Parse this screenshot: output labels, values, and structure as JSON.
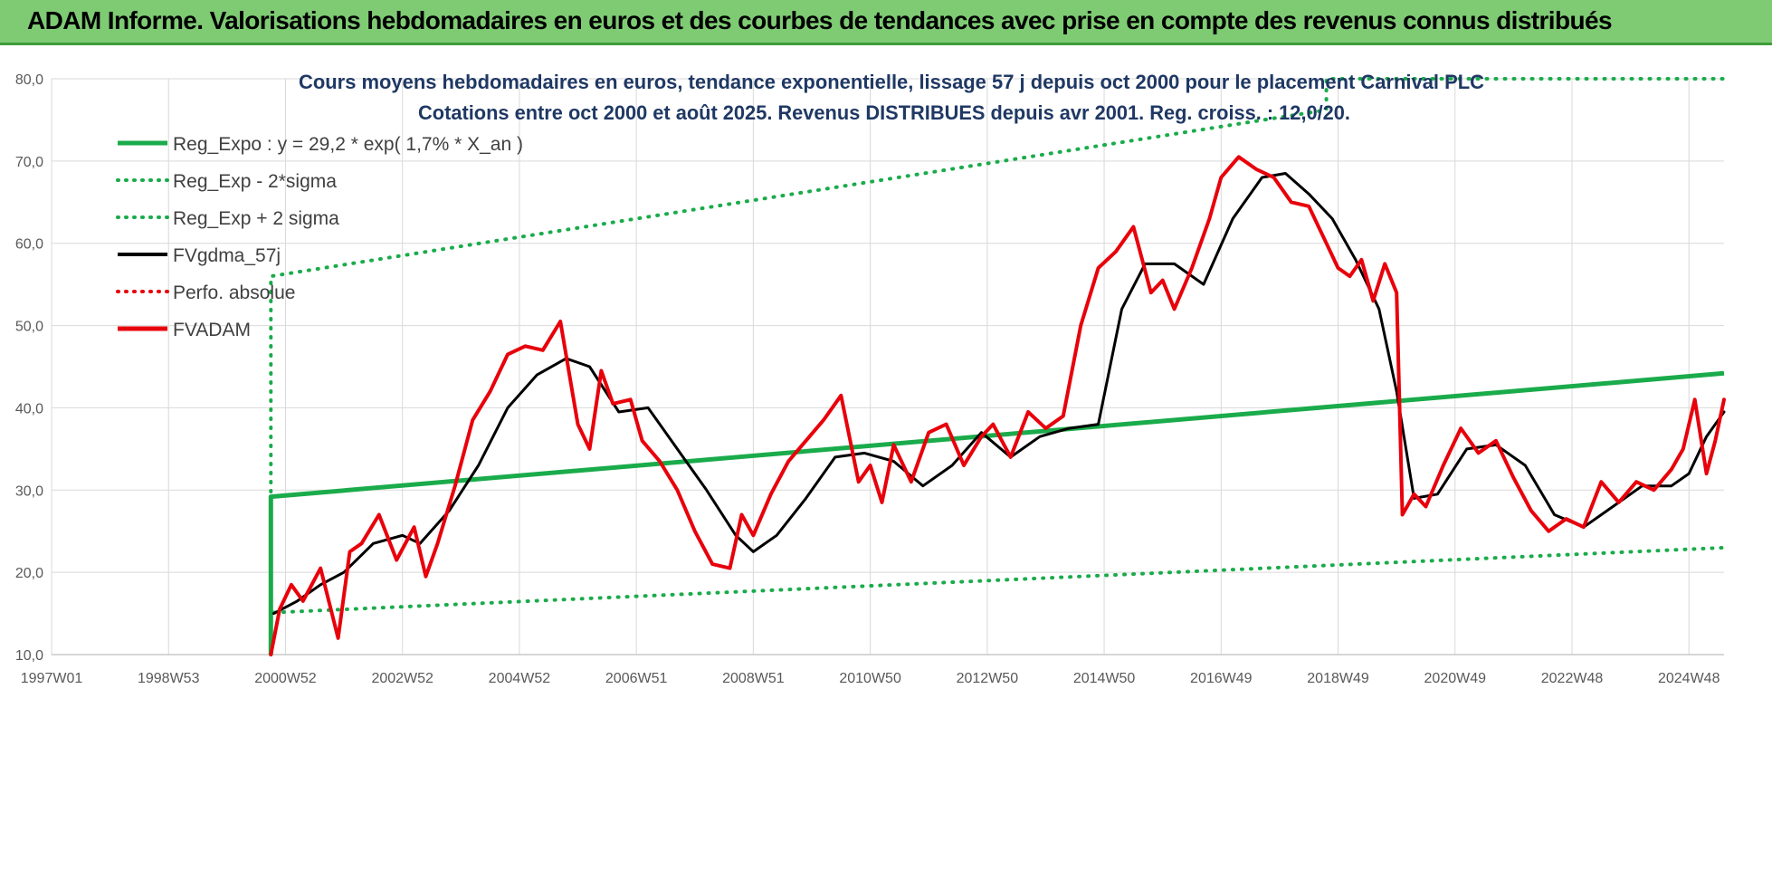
{
  "banner": {
    "title": "ADAM Informe. Valorisations hebdomadaires en euros et des courbes de tendances avec prise en compte des revenus connus distribués"
  },
  "colors": {
    "banner_bg": "#7ecb73",
    "reg_expo": "#1aab4b",
    "fvgdma": "#000000",
    "fvadam": "#e8000b",
    "title_text": "#1f3864"
  },
  "chart_data": {
    "type": "line",
    "title_line1": "Cours moyens hebdomadaires en euros, tendance exponentielle, lissage 57 j depuis oct 2000 pour le placement Carnival PLC",
    "title_line2": "Cotations entre oct 2000 et août 2025.  Revenus DISTRIBUES depuis avr 2001. Reg. croiss. : 12,0/20.",
    "xlabel": "",
    "ylabel": "",
    "ylim": [
      10,
      80
    ],
    "xlim": [
      1997.0,
      2025.6
    ],
    "y_ticks": [
      "10,0",
      "20,0",
      "30,0",
      "40,0",
      "50,0",
      "60,0",
      "70,0",
      "80,0"
    ],
    "y_tick_values": [
      10,
      20,
      30,
      40,
      50,
      60,
      70,
      80
    ],
    "x_ticks": [
      "1997W01",
      "1998W53",
      "2000W52",
      "2002W52",
      "2004W52",
      "2006W51",
      "2008W51",
      "2010W50",
      "2012W50",
      "2014W50",
      "2016W49",
      "2018W49",
      "2020W49",
      "2022W48",
      "2024W48"
    ],
    "x_tick_values": [
      1997.0,
      1999.0,
      2001.0,
      2003.0,
      2005.0,
      2007.0,
      2009.0,
      2011.0,
      2013.0,
      2015.0,
      2017.0,
      2019.0,
      2021.0,
      2023.0,
      2025.0
    ],
    "grid": true,
    "legend_position": "top-left",
    "legend": [
      {
        "label": "Reg_Expo : y = 29,2 * exp( 1,7% *  X_an )",
        "style": "solid-thick",
        "color": "#1aab4b"
      },
      {
        "label": "Reg_Exp - 2*sigma",
        "style": "dotted",
        "color": "#1aab4b"
      },
      {
        "label": "Reg_Exp + 2 sigma",
        "style": "dotted",
        "color": "#1aab4b"
      },
      {
        "label": "FVgdma_57j",
        "style": "solid",
        "color": "#000000"
      },
      {
        "label": "Perfo. absolue",
        "style": "dotted",
        "color": "#e8000b"
      },
      {
        "label": "FVADAM",
        "style": "solid-thick",
        "color": "#e8000b"
      }
    ],
    "series": [
      {
        "name": "Reg_Expo : y = 29,2 * exp( 1,7% *  X_an )",
        "x": [
          2000.75,
          2000.75,
          2025.6
        ],
        "y": [
          10.0,
          29.2,
          44.2
        ]
      },
      {
        "name": "Reg_Exp - 2*sigma",
        "x": [
          2000.75,
          2000.75,
          2025.6
        ],
        "y": [
          10.0,
          15.1,
          23.0
        ]
      },
      {
        "name": "Reg_Exp + 2 sigma",
        "x": [
          2000.75,
          2000.75,
          2018.8,
          2018.8,
          2025.6
        ],
        "y": [
          10.0,
          56.0,
          76.2,
          80.0,
          80.0
        ]
      },
      {
        "name": "FVgdma_57j",
        "x": [
          2000.8,
          2001.2,
          2001.6,
          2002.0,
          2002.5,
          2003.0,
          2003.3,
          2003.8,
          2004.3,
          2004.8,
          2005.3,
          2005.8,
          2006.2,
          2006.7,
          2007.2,
          2007.7,
          2008.2,
          2008.7,
          2009.0,
          2009.4,
          2009.9,
          2010.4,
          2010.9,
          2011.4,
          2011.9,
          2012.4,
          2012.9,
          2013.4,
          2013.9,
          2014.4,
          2014.9,
          2015.3,
          2015.7,
          2016.2,
          2016.7,
          2017.2,
          2017.7,
          2018.1,
          2018.5,
          2018.9,
          2019.3,
          2019.7,
          2020.0,
          2020.3,
          2020.7,
          2021.2,
          2021.7,
          2022.2,
          2022.7,
          2023.2,
          2023.7,
          2024.2,
          2024.7,
          2025.0,
          2025.3,
          2025.6
        ],
        "y": [
          15.0,
          16.5,
          18.5,
          20.0,
          23.5,
          24.5,
          23.5,
          27.5,
          33.0,
          40.0,
          44.0,
          46.0,
          45.0,
          39.5,
          40.0,
          35.0,
          30.0,
          24.5,
          22.5,
          24.5,
          29.0,
          34.0,
          34.5,
          33.5,
          30.5,
          33.0,
          37.0,
          34.0,
          36.5,
          37.5,
          38.0,
          52.0,
          57.5,
          57.5,
          55.0,
          63.0,
          68.0,
          68.5,
          66.0,
          63.0,
          58.0,
          52.0,
          42.0,
          29.0,
          29.5,
          35.0,
          35.5,
          33.0,
          27.0,
          25.5,
          28.0,
          30.5,
          30.5,
          32.0,
          36.5,
          39.5
        ]
      },
      {
        "name": "FVADAM",
        "x": [
          2000.75,
          2000.9,
          2001.1,
          2001.3,
          2001.6,
          2001.9,
          2002.1,
          2002.3,
          2002.6,
          2002.9,
          2003.2,
          2003.4,
          2003.6,
          2003.9,
          2004.2,
          2004.5,
          2004.8,
          2005.1,
          2005.4,
          2005.7,
          2006.0,
          2006.2,
          2006.4,
          2006.6,
          2006.9,
          2007.1,
          2007.4,
          2007.7,
          2008.0,
          2008.3,
          2008.6,
          2008.8,
          2009.0,
          2009.3,
          2009.6,
          2009.9,
          2010.2,
          2010.5,
          2010.8,
          2011.0,
          2011.2,
          2011.4,
          2011.7,
          2012.0,
          2012.3,
          2012.6,
          2012.9,
          2013.1,
          2013.4,
          2013.7,
          2014.0,
          2014.3,
          2014.6,
          2014.9,
          2015.2,
          2015.5,
          2015.8,
          2016.0,
          2016.2,
          2016.5,
          2016.8,
          2017.0,
          2017.3,
          2017.6,
          2017.9,
          2018.2,
          2018.5,
          2018.8,
          2019.0,
          2019.2,
          2019.4,
          2019.6,
          2019.8,
          2020.0,
          2020.1,
          2020.3,
          2020.5,
          2020.8,
          2021.1,
          2021.4,
          2021.7,
          2022.0,
          2022.3,
          2022.6,
          2022.9,
          2023.2,
          2023.5,
          2023.8,
          2024.1,
          2024.4,
          2024.7,
          2024.9,
          2025.1,
          2025.3,
          2025.45,
          2025.6
        ],
        "y": [
          10.0,
          15.5,
          18.5,
          16.5,
          20.5,
          12.0,
          22.5,
          23.5,
          27.0,
          21.5,
          25.5,
          19.5,
          23.5,
          30.5,
          38.5,
          42.0,
          46.5,
          47.5,
          47.0,
          50.5,
          38.0,
          35.0,
          44.5,
          40.5,
          41.0,
          36.0,
          33.5,
          30.0,
          25.0,
          21.0,
          20.5,
          27.0,
          24.5,
          29.5,
          33.5,
          36.0,
          38.5,
          41.5,
          31.0,
          33.0,
          28.5,
          35.5,
          31.0,
          37.0,
          38.0,
          33.0,
          36.5,
          38.0,
          34.0,
          39.5,
          37.5,
          39.0,
          50.0,
          57.0,
          59.0,
          62.0,
          54.0,
          55.5,
          52.0,
          57.0,
          63.0,
          68.0,
          70.5,
          69.0,
          68.0,
          65.0,
          64.5,
          60.0,
          57.0,
          56.0,
          58.0,
          53.0,
          57.5,
          54.0,
          27.0,
          29.5,
          28.0,
          33.0,
          37.5,
          34.5,
          36.0,
          31.5,
          27.5,
          25.0,
          26.5,
          25.5,
          31.0,
          28.5,
          31.0,
          30.0,
          32.5,
          35.0,
          41.0,
          32.0,
          36.0,
          41.0
        ]
      }
    ]
  }
}
